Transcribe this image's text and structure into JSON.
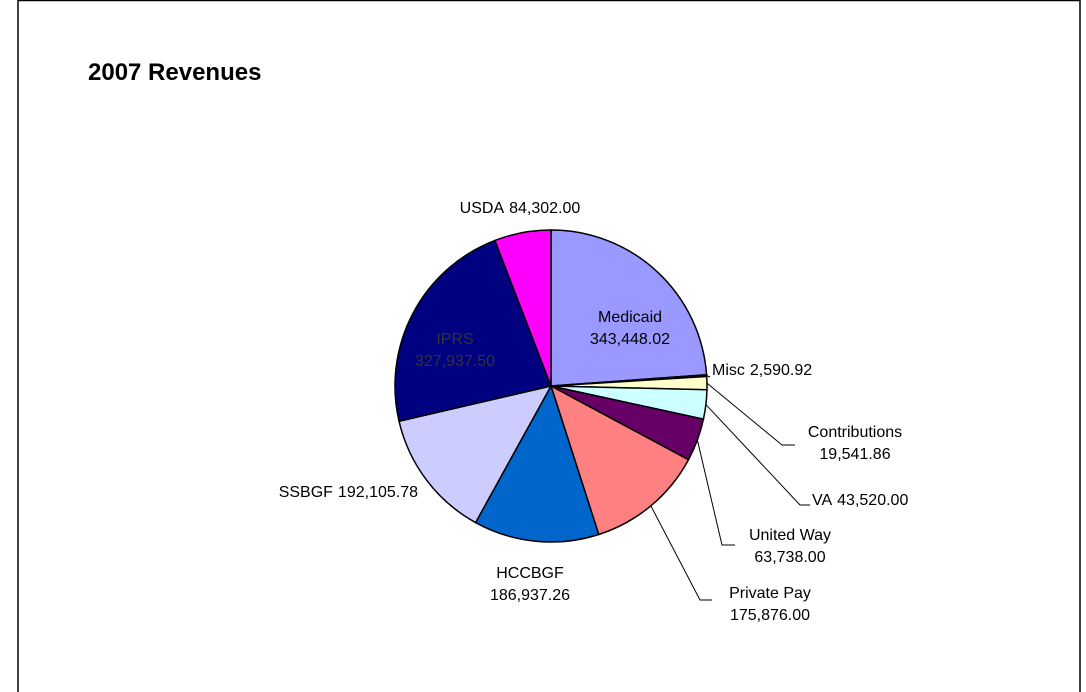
{
  "chart_data": {
    "type": "pie",
    "title": "2007 Revenues",
    "categories": [
      "Medicaid",
      "Misc",
      "Contributions",
      "VA",
      "United Way",
      "Private Pay",
      "HCCBGF",
      "SSBGF",
      "IPRS",
      "USDA"
    ],
    "values": [
      343448.02,
      2590.92,
      19541.86,
      43520.0,
      63738.0,
      175876.0,
      186937.26,
      192105.78,
      327937.5,
      84302.0
    ],
    "value_labels": [
      "343,448.02",
      "2,590.92",
      "19,541.86",
      "43,520.00",
      "63,738.00",
      "175,876.00",
      "186,937.26",
      "192,105.78",
      "327,937.50",
      "84,302.00"
    ],
    "colors": [
      "#9999ff",
      "#993366",
      "#ffffcc",
      "#ccffff",
      "#660066",
      "#ff8080",
      "#0066cc",
      "#ccccff",
      "#000080",
      "#ff00ff"
    ]
  }
}
